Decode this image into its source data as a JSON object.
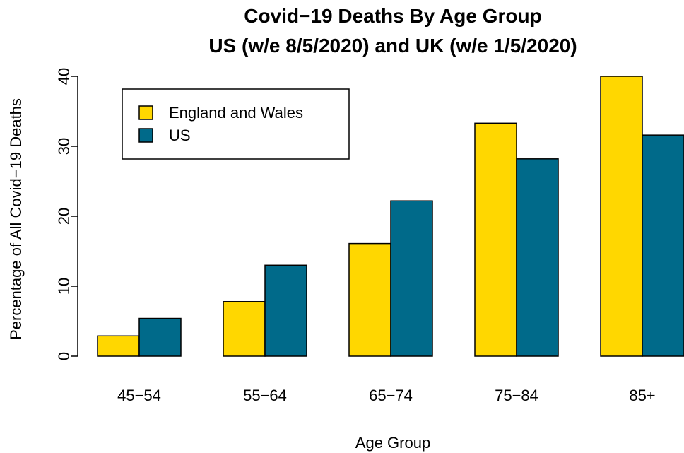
{
  "chart_data": {
    "type": "bar",
    "title": "Covid−19 Deaths By Age Group",
    "subtitle": "US (w/e 8/5/2020) and UK (w/e 1/5/2020)",
    "xlabel": "Age Group",
    "ylabel": "Percentage of All Covid−19 Deaths",
    "categories": [
      "45−54",
      "55−64",
      "65−74",
      "75−84",
      "85+"
    ],
    "yticks": [
      0,
      10,
      20,
      30,
      40
    ],
    "ylim": [
      0,
      40
    ],
    "grid": false,
    "legend_position": "top-left",
    "series": [
      {
        "name": "England and Wales",
        "color": "#FFD700",
        "values": [
          2.9,
          7.8,
          16.1,
          33.3,
          40.0
        ]
      },
      {
        "name": "US",
        "color": "#006A8A",
        "values": [
          5.4,
          13.0,
          22.2,
          28.2,
          31.6
        ]
      }
    ]
  }
}
